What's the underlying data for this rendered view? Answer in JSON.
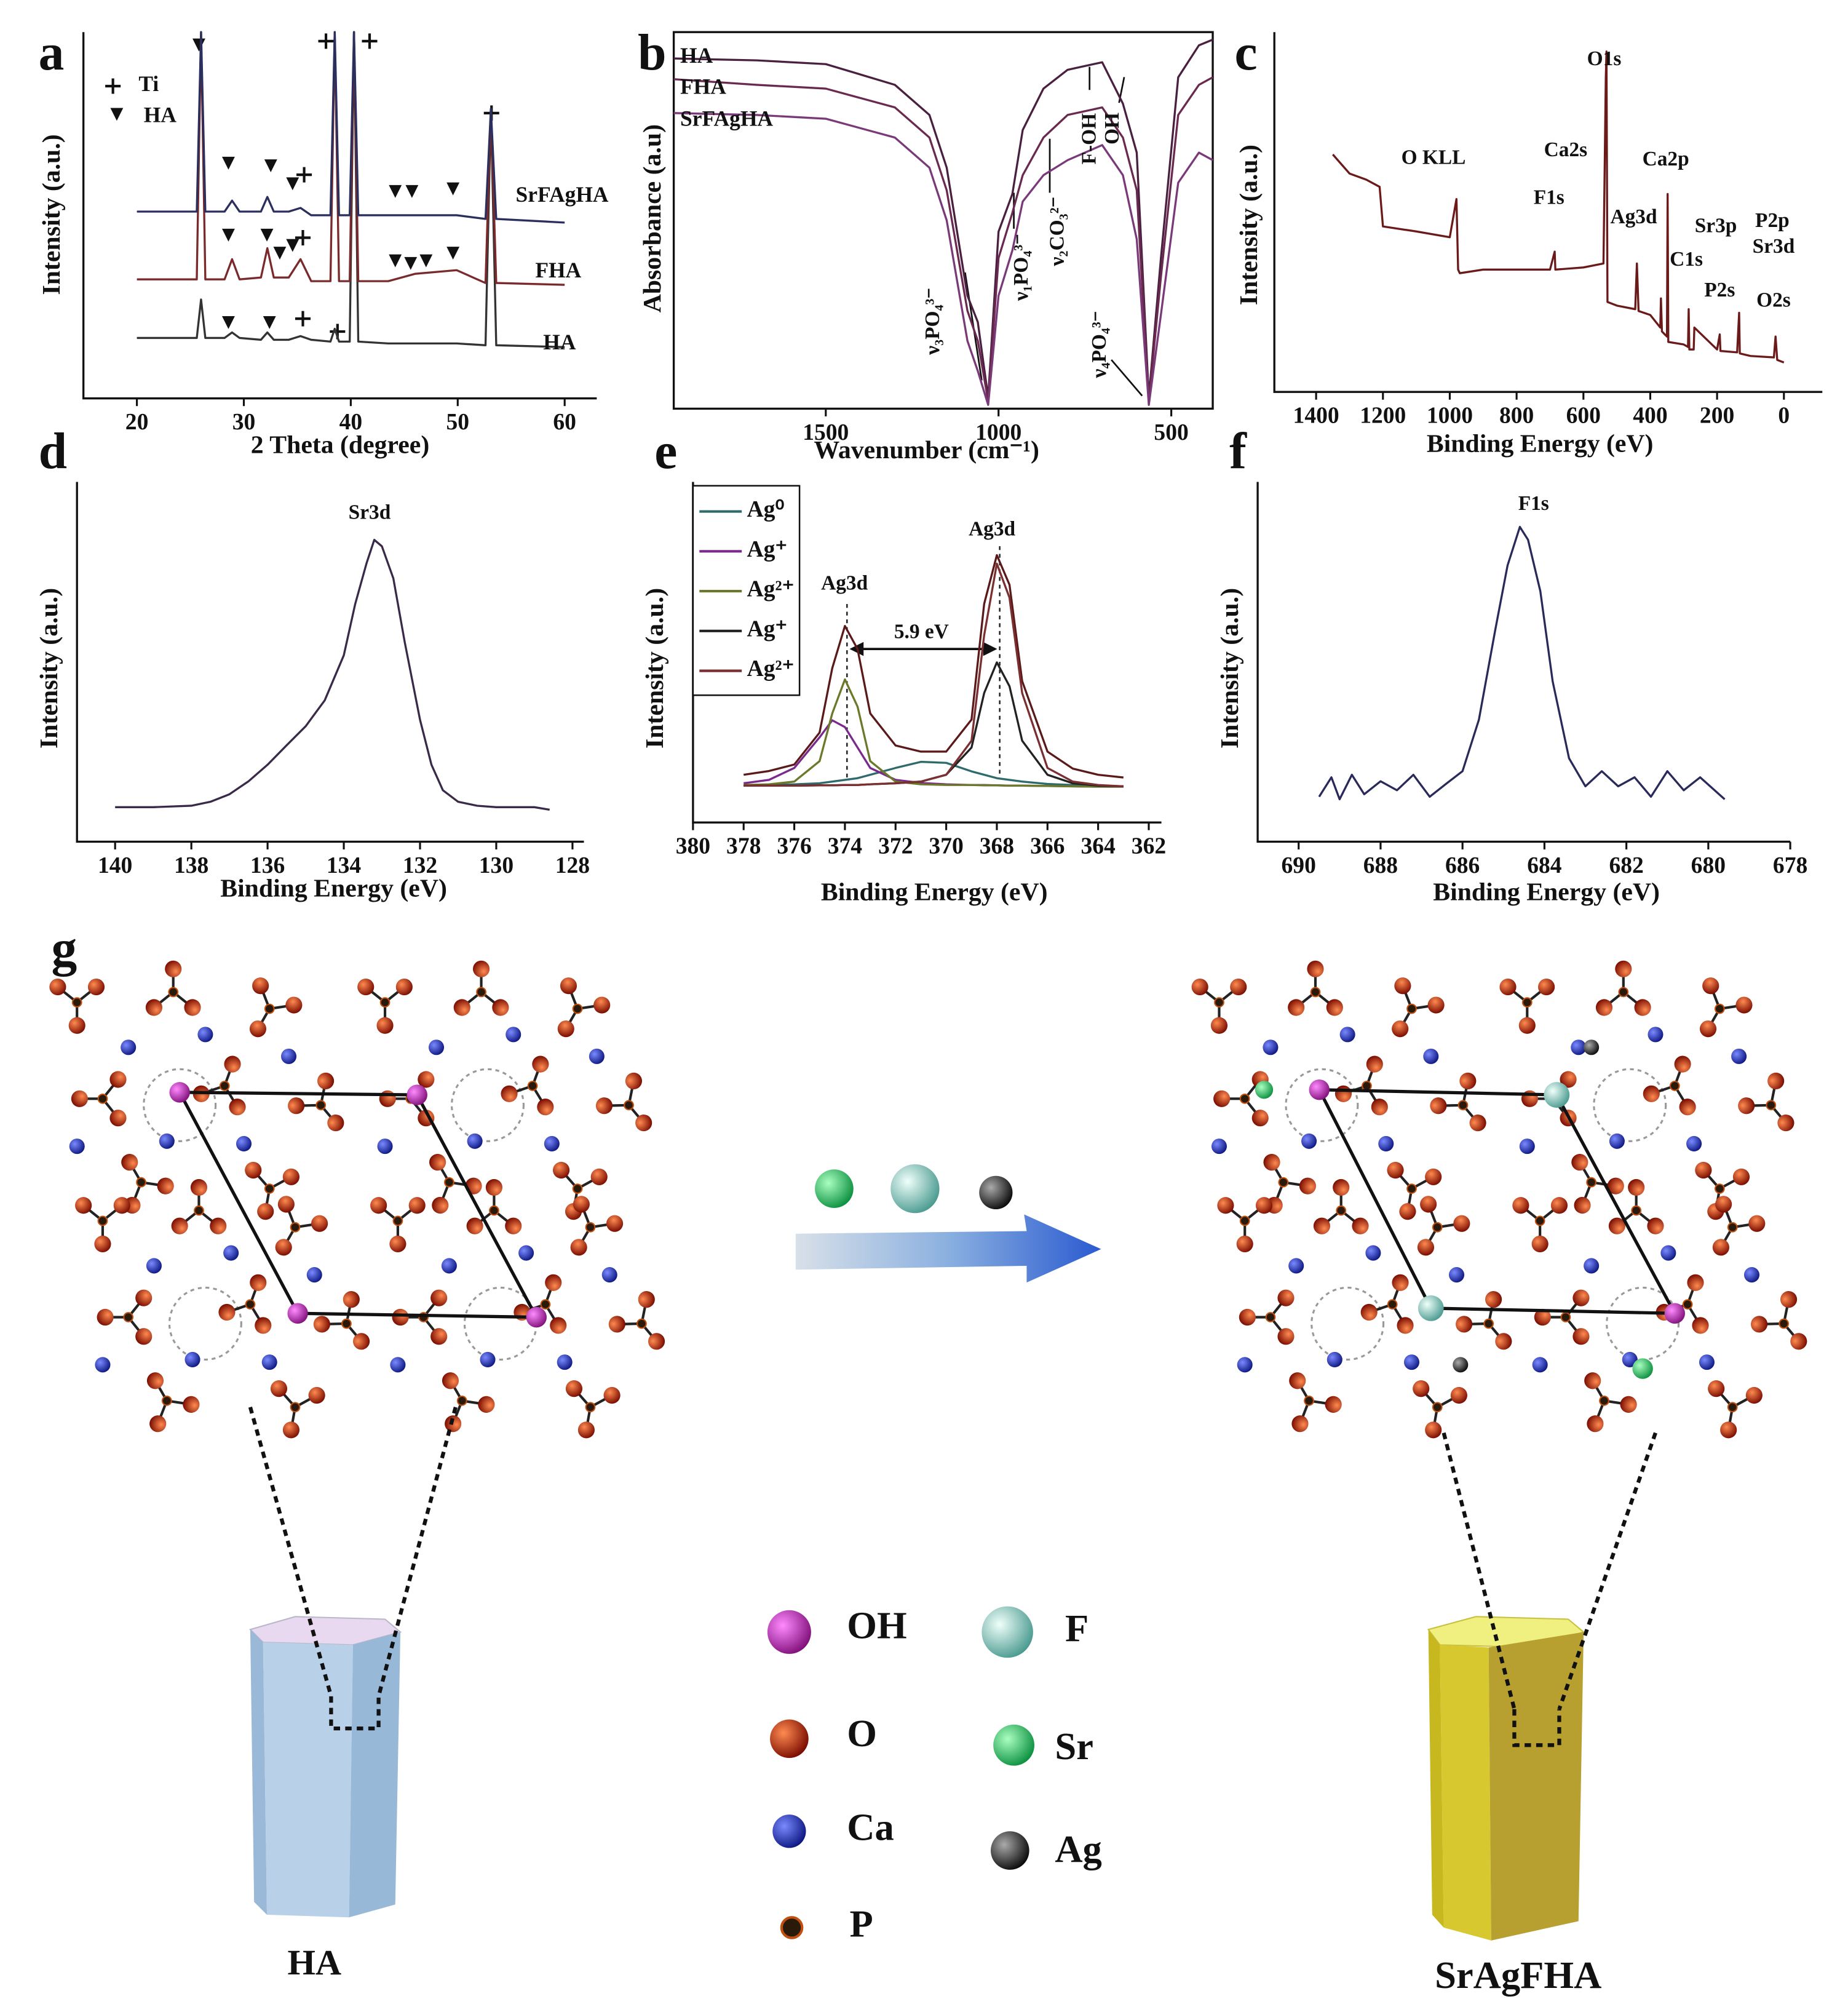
{
  "chart_data": [
    {
      "type": "line",
      "panel_label": "a",
      "ylabel": "Intensity (a.u.)",
      "xlabel": "2 Theta (degree)",
      "marker_legend": [
        "Ti",
        "HA"
      ],
      "xlim": [
        15,
        63
      ],
      "xticks": [
        20,
        30,
        40,
        50,
        60
      ],
      "ylim": [
        0,
        100
      ],
      "x": [
        20,
        25.6,
        26,
        26.4,
        28.2,
        28.9,
        29.6,
        31.6,
        32.2,
        32.8,
        34.2,
        35.3,
        36.3,
        38.1,
        38.5,
        38.9,
        39.9,
        40.3,
        40.7,
        43.5,
        46,
        49.9,
        52.6,
        53.1,
        53.6,
        60
      ],
      "series": [
        {
          "name": "HA",
          "color": "#333333",
          "values": [
            16.5,
            16.5,
            27,
            16.5,
            16.5,
            18,
            16.5,
            16,
            18,
            16,
            16,
            17,
            16,
            15.5,
            19,
            15.5,
            15.5,
            100,
            15.5,
            15,
            15,
            15,
            14.5,
            79,
            14.5,
            14
          ]
        },
        {
          "name": "FHA",
          "color": "#7a2a2a",
          "values": [
            32.5,
            32.5,
            100,
            32.5,
            32.5,
            38,
            32.5,
            33,
            41,
            33,
            33,
            38,
            32,
            32,
            100,
            32,
            32,
            100,
            32,
            32,
            34,
            35,
            31.5,
            79,
            31.5,
            31
          ]
        },
        {
          "name": "SrFAgHA",
          "color": "#2b2f5e",
          "values": [
            51,
            51,
            100,
            51,
            51,
            54,
            51,
            51,
            55,
            51,
            51,
            52,
            50,
            50,
            100,
            50,
            50,
            100,
            50,
            50,
            50,
            50,
            49,
            79,
            49,
            48
          ]
        }
      ]
    },
    {
      "type": "line",
      "panel_label": "b",
      "ylabel": "Absorbance (a.u)",
      "xlabel": "Wavenumber (cm⁻¹)",
      "xlim": [
        1940,
        380
      ],
      "xticks": [
        1500,
        1000,
        500
      ],
      "ylim": [
        0,
        100
      ],
      "x": [
        1940,
        1700,
        1500,
        1300,
        1200,
        1150,
        1090,
        1060,
        1030,
        1000,
        960,
        930,
        870,
        800,
        700,
        640,
        600,
        565,
        530,
        480,
        420,
        380
      ],
      "series": [
        {
          "name": "HA",
          "color": "#4a2040",
          "values": [
            93,
            92.5,
            91.5,
            86,
            78,
            64,
            30,
            23,
            3,
            47,
            57,
            74,
            85,
            90,
            92,
            81,
            68,
            3,
            40,
            88,
            96.5,
            98
          ]
        },
        {
          "name": "FHA",
          "color": "#6a2a50",
          "values": [
            87.5,
            86,
            85,
            80,
            72,
            58,
            26,
            18,
            2,
            40,
            52,
            62,
            72,
            78,
            80,
            72,
            58,
            2,
            35,
            78,
            86,
            88
          ]
        },
        {
          "name": "SrFAgHA",
          "color": "#7a3a7a",
          "values": [
            78.5,
            78,
            77,
            72,
            64,
            50,
            18,
            10,
            1,
            30,
            42,
            55,
            62,
            66,
            70,
            62,
            45,
            1,
            25,
            60,
            68,
            66
          ]
        }
      ],
      "annotations": [
        {
          "text": "ν₃PO₄³⁻",
          "color": "#111111"
        },
        {
          "text": "ν₁PO₄³⁻",
          "color": "#111111"
        },
        {
          "text": "ν₂CO₃²⁻",
          "color": "#111111"
        },
        {
          "text": "F-OH",
          "color": "#111111"
        },
        {
          "text": "OH",
          "color": "#111111"
        },
        {
          "text": "ν₄PO₄³⁻",
          "color": "#111111"
        }
      ]
    },
    {
      "type": "line",
      "panel_label": "c",
      "ylabel": "Intensity (a.u.)",
      "xlabel": "Binding Energy (eV)",
      "xlim": [
        1525,
        -115
      ],
      "xticks": [
        1400,
        1200,
        1000,
        800,
        600,
        400,
        200,
        0
      ],
      "ylim": [
        0,
        100
      ],
      "x": [
        1350,
        1300,
        1250,
        1210,
        1200,
        1100,
        1000,
        980,
        975,
        970,
        900,
        800,
        700,
        686,
        684,
        600,
        540,
        533,
        531,
        528,
        500,
        445,
        440,
        435,
        400,
        370,
        368,
        365,
        350,
        348,
        346,
        300,
        287,
        285,
        283,
        270,
        268,
        200,
        192,
        190,
        140,
        134,
        132,
        100,
        30,
        25,
        20,
        0
      ],
      "series": [
        {
          "color": "#6b1a1a",
          "values": [
            66,
            60.7,
            59,
            57,
            46,
            44.6,
            43,
            53.6,
            34,
            33,
            34,
            34,
            34,
            39,
            34,
            34.6,
            35.7,
            87.5,
            94.6,
            25,
            24,
            23,
            35.7,
            22.5,
            21.4,
            17.9,
            26,
            16.8,
            15.4,
            55,
            13.9,
            13.2,
            12.5,
            23,
            11.8,
            11.8,
            17.9,
            11.8,
            16,
            11.4,
            11,
            22,
            10.7,
            10,
            9.6,
            15.4,
            8.9,
            8.2
          ]
        }
      ],
      "annotations": [
        {
          "text": "O KLL",
          "color": "#111111"
        },
        {
          "text": "Ca2s",
          "color": "#111111"
        },
        {
          "text": "O1s",
          "color": "#111111"
        },
        {
          "text": "Ca2p",
          "color": "#111111"
        },
        {
          "text": "F1s",
          "color": "#2a3a9a"
        },
        {
          "text": "Ag3d",
          "color": "#2a7a2a"
        },
        {
          "text": "Sr3p",
          "color": "#5a2a8a"
        },
        {
          "text": "C1s",
          "color": "#111111"
        },
        {
          "text": "P2p",
          "color": "#111111"
        },
        {
          "text": "Sr3d",
          "color": "#5a2a8a"
        },
        {
          "text": "P2s",
          "color": "#111111"
        },
        {
          "text": "O2s",
          "color": "#111111"
        }
      ]
    },
    {
      "type": "line",
      "panel_label": "d",
      "ylabel": "Intensity (a.u.)",
      "xlabel": "Binding Energy (eV)",
      "xlim": [
        141,
        127.7
      ],
      "xticks": [
        140,
        138,
        136,
        134,
        132,
        130,
        128
      ],
      "ylim": [
        0,
        100
      ],
      "x": [
        140,
        139,
        138,
        137.5,
        137,
        136.5,
        136,
        135.5,
        135,
        134.5,
        134,
        133.7,
        133.4,
        133.2,
        133,
        132.7,
        132.4,
        132,
        131.7,
        131.4,
        131,
        130.5,
        130,
        129,
        128.6
      ],
      "series": [
        {
          "color": "#3a2a4a",
          "values": [
            9.6,
            9.6,
            10,
            11.1,
            13.2,
            16.8,
            21.4,
            26.8,
            32.1,
            39.3,
            51.8,
            66.1,
            77.5,
            83.9,
            82.1,
            73.2,
            55.4,
            33.9,
            21.4,
            14.3,
            11.1,
            10,
            9.6,
            9.6,
            8.9
          ]
        }
      ],
      "annotations": [
        {
          "text": "Sr3d",
          "color": "#4a2a6a"
        }
      ]
    },
    {
      "type": "line",
      "panel_label": "e",
      "ylabel": "Intensity (a.u.)",
      "xlabel": "Binding Energy (eV)",
      "xlim": [
        380,
        361.5
      ],
      "xticks": [
        380,
        378,
        376,
        374,
        372,
        370,
        368,
        366,
        364,
        362
      ],
      "ylim": [
        0,
        100
      ],
      "x": [
        378,
        377,
        376,
        375,
        374.5,
        374,
        373.5,
        373,
        372,
        371,
        370,
        369,
        368.5,
        368,
        367.5,
        367,
        366,
        365,
        364,
        363
      ],
      "series": [
        {
          "color": "#5a1a1a",
          "values": [
            14,
            15.1,
            17,
            26.4,
            45.3,
            57.7,
            50.9,
            32,
            22.6,
            20.8,
            20.8,
            30.2,
            64.2,
            78.5,
            69.8,
            41.5,
            20.8,
            15.8,
            14,
            13.2
          ]
        },
        {
          "name": "Ag⁰",
          "color": "#2f6b6b",
          "values": [
            11,
            11,
            11.2,
            11.5,
            12,
            12.5,
            13,
            14,
            16,
            17.8,
            17.5,
            15,
            14,
            13,
            12.5,
            12,
            11.3,
            11,
            10.8,
            10.6
          ]
        },
        {
          "name": "Ag⁺",
          "color": "#7a2a8a",
          "values": [
            11.5,
            12.5,
            16,
            25,
            30,
            28,
            22,
            16,
            12.5,
            11.6,
            11.2,
            11,
            11,
            10.9,
            10.8,
            10.8,
            10.7,
            10.6,
            10.5,
            10.5
          ]
        },
        {
          "name": "Ag²⁺",
          "color": "#6b7a2a",
          "values": [
            11,
            11.2,
            12,
            18,
            32,
            42,
            34,
            18,
            12,
            11.2,
            11,
            11,
            10.9,
            10.9,
            10.8,
            10.8,
            10.7,
            10.6,
            10.5,
            10.5
          ]
        },
        {
          "name": "Ag⁺",
          "color": "#222222",
          "values": [
            10.8,
            10.8,
            10.8,
            10.9,
            10.9,
            11,
            11,
            11.2,
            11.5,
            12,
            14,
            22,
            38,
            47,
            40,
            24,
            14,
            11.5,
            10.8,
            10.6
          ]
        },
        {
          "name": "Ag²⁺",
          "color": "#7a3030",
          "values": [
            10.8,
            10.8,
            10.8,
            10.9,
            10.9,
            11,
            11,
            11.2,
            11.5,
            12,
            14,
            24,
            55,
            76,
            66,
            38,
            16,
            12,
            11,
            10.6
          ]
        }
      ],
      "annotations": [
        {
          "text": "Ag3d",
          "color": "#2a9a2a"
        },
        {
          "text": "Ag3d",
          "color": "#2a9a2a"
        },
        {
          "text": "5.9 eV",
          "color": "#111111"
        }
      ]
    },
    {
      "type": "line",
      "panel_label": "f",
      "ylabel": "Intensity (a.u.)",
      "xlabel": "Binding Energy (eV)",
      "xlim": [
        691,
        678
      ],
      "xticks": [
        690,
        688,
        686,
        684,
        682,
        680,
        678
      ],
      "ylim": [
        0,
        100
      ],
      "x": [
        689.5,
        689.2,
        689,
        688.7,
        688.4,
        688,
        687.6,
        687.2,
        686.8,
        686.4,
        686,
        685.6,
        685.2,
        684.9,
        684.6,
        684.4,
        684.1,
        683.8,
        683.4,
        683,
        682.6,
        682.2,
        681.8,
        681.4,
        681,
        680.6,
        680.2,
        679.6
      ],
      "series": [
        {
          "color": "#2a2a5a",
          "values": [
            12.5,
            17.9,
            11.8,
            18.6,
            13.2,
            16.8,
            14.3,
            18.6,
            12.5,
            16.1,
            19.6,
            33.9,
            58.9,
            76.8,
            87.5,
            83.9,
            69.6,
            44.6,
            23.2,
            15.4,
            19.6,
            15.4,
            17.9,
            12.5,
            19.6,
            14.3,
            17.9,
            11.8
          ]
        }
      ],
      "annotations": [
        {
          "text": "F1s",
          "color": "#2a2a6a"
        }
      ]
    }
  ],
  "diagram": {
    "panel_label": "g",
    "left_label": "HA",
    "right_label": "SrAgFHA",
    "legend": [
      "OH",
      "F",
      "O",
      "Sr",
      "Ca",
      "Ag",
      "P"
    ]
  }
}
